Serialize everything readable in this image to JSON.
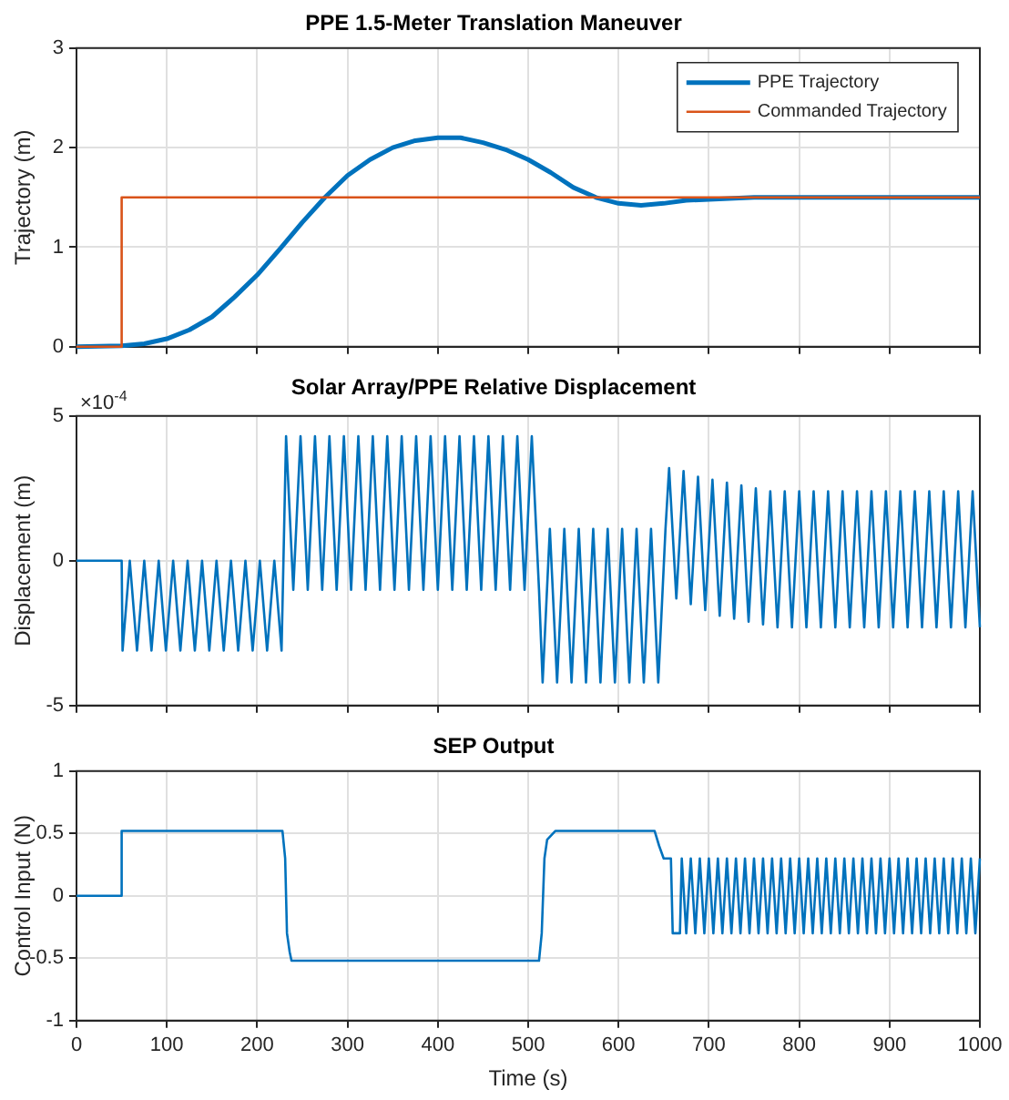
{
  "chart_data": [
    {
      "type": "line",
      "title": "PPE 1.5-Meter Translation Maneuver",
      "ylabel": "Trajectory (m)",
      "xlim": [
        0,
        1000
      ],
      "xticks": [
        0,
        100,
        200,
        300,
        400,
        500,
        600,
        700,
        800,
        900,
        1000
      ],
      "ylim": [
        0,
        3
      ],
      "yticks": [
        0,
        1,
        2,
        3
      ],
      "grid": true,
      "legend": "top right",
      "tick_labels": "y",
      "marker": "none",
      "line_style": "solid",
      "series": [
        {
          "name": "PPE Trajectory",
          "color": "#0072bd",
          "x": [
            0,
            50,
            75,
            100,
            125,
            150,
            175,
            200,
            225,
            250,
            275,
            300,
            325,
            350,
            375,
            400,
            425,
            450,
            475,
            500,
            525,
            550,
            575,
            600,
            625,
            650,
            675,
            700,
            750,
            800,
            900,
            1000
          ],
          "values": [
            0,
            0.01,
            0.03,
            0.08,
            0.17,
            0.3,
            0.5,
            0.72,
            0.98,
            1.25,
            1.5,
            1.72,
            1.88,
            2.0,
            2.07,
            2.1,
            2.1,
            2.05,
            1.98,
            1.88,
            1.75,
            1.6,
            1.5,
            1.44,
            1.42,
            1.44,
            1.47,
            1.48,
            1.5,
            1.5,
            1.5,
            1.5
          ]
        },
        {
          "name": "Commanded Trajectory",
          "color": "#d95319",
          "x": [
            0,
            50,
            50,
            1000
          ],
          "values": [
            0,
            0,
            1.5,
            1.5
          ]
        }
      ]
    },
    {
      "type": "line",
      "title": "Solar Array/PPE Relative Displacement",
      "ylabel": "Displacement (m)",
      "annotations": [
        "×10$^{-4}$"
      ],
      "xlim": [
        0,
        1000
      ],
      "xticks": [
        0,
        100,
        200,
        300,
        400,
        500,
        600,
        700,
        800,
        900,
        1000
      ],
      "ylim": [
        -5,
        5
      ],
      "yticks": [
        -5,
        0,
        5
      ],
      "grid": true,
      "tick_labels": "y",
      "marker": "none",
      "line_style": "solid",
      "series": [
        {
          "color": "#0072bd",
          "x": [
            0,
            50,
            51,
            59,
            67,
            75,
            83,
            91,
            99,
            107,
            115,
            123,
            131,
            139,
            147,
            155,
            163,
            171,
            179,
            187,
            195,
            203,
            211,
            219,
            227,
            232,
            240,
            248,
            256,
            264,
            272,
            280,
            288,
            296,
            304,
            312,
            320,
            328,
            336,
            344,
            352,
            360,
            368,
            376,
            384,
            392,
            400,
            408,
            416,
            424,
            432,
            440,
            448,
            456,
            464,
            472,
            480,
            488,
            496,
            504,
            512,
            516,
            524,
            532,
            540,
            548,
            556,
            564,
            572,
            580,
            588,
            596,
            604,
            612,
            620,
            628,
            636,
            644,
            652,
            656,
            664,
            672,
            680,
            688,
            696,
            704,
            712,
            720,
            728,
            736,
            744,
            752,
            760,
            768,
            776,
            784,
            792,
            800,
            808,
            816,
            824,
            832,
            840,
            848,
            856,
            864,
            872,
            880,
            888,
            896,
            904,
            912,
            920,
            928,
            936,
            944,
            952,
            960,
            968,
            976,
            984,
            992,
            1000
          ],
          "values": [
            0,
            0,
            -3.1,
            0,
            -3.1,
            0,
            -3.1,
            0,
            -3.1,
            0,
            -3.1,
            0,
            -3.1,
            0,
            -3.1,
            0,
            -3.1,
            0,
            -3.1,
            0,
            -3.1,
            0,
            -3.1,
            0,
            -3.1,
            4.3,
            -1,
            4.3,
            -1,
            4.3,
            -1,
            4.3,
            -1,
            4.3,
            -1,
            4.3,
            -1,
            4.3,
            -1,
            4.3,
            -1,
            4.3,
            -1,
            4.3,
            -1,
            4.3,
            -1,
            4.3,
            -1,
            4.3,
            -1,
            4.3,
            -1,
            4.3,
            -1,
            4.3,
            -1,
            4.3,
            -1,
            4.3,
            -1,
            -4.2,
            1.1,
            -4.2,
            1.1,
            -4.2,
            1.1,
            -4.2,
            1.1,
            -4.2,
            1.1,
            -4.2,
            1.1,
            -4.2,
            1.1,
            -4.2,
            1.1,
            -4.2,
            1.1,
            3.2,
            -1.3,
            3.1,
            -1.5,
            2.9,
            -1.7,
            2.8,
            -1.9,
            2.7,
            -2.0,
            2.6,
            -2.1,
            2.5,
            -2.2,
            2.4,
            -2.3,
            2.4,
            -2.3,
            2.4,
            -2.3,
            2.4,
            -2.3,
            2.4,
            -2.3,
            2.4,
            -2.3,
            2.4,
            -2.3,
            2.4,
            -2.3,
            2.4,
            -2.3,
            2.4,
            -2.3,
            2.4,
            -2.3,
            2.4,
            -2.3,
            2.4,
            -2.3,
            2.4,
            -2.3,
            2.4,
            -2.3
          ]
        }
      ]
    },
    {
      "type": "line",
      "title": "SEP Output",
      "xlabel": "Time (s)",
      "ylabel": "Control Input (N)",
      "xlim": [
        0,
        1000
      ],
      "xticks": [
        0,
        100,
        200,
        300,
        400,
        500,
        600,
        700,
        800,
        900,
        1000
      ],
      "ylim": [
        -1,
        1
      ],
      "yticks": [
        -1,
        -0.5,
        0,
        0.5,
        1
      ],
      "grid": true,
      "marker": "none",
      "line_style": "solid",
      "series": [
        {
          "color": "#0072bd",
          "x": [
            0,
            50,
            50,
            228,
            231,
            233,
            236,
            238,
            512,
            515,
            518,
            521,
            530,
            640,
            645,
            650,
            658,
            660,
            668,
            670,
            675,
            680,
            685,
            690,
            695,
            700,
            705,
            710,
            715,
            720,
            725,
            730,
            735,
            740,
            745,
            750,
            755,
            760,
            765,
            770,
            775,
            780,
            785,
            790,
            795,
            800,
            805,
            810,
            815,
            820,
            825,
            830,
            835,
            840,
            845,
            850,
            855,
            860,
            865,
            870,
            875,
            880,
            885,
            890,
            895,
            900,
            905,
            910,
            915,
            920,
            925,
            930,
            935,
            940,
            945,
            950,
            955,
            960,
            965,
            970,
            975,
            980,
            985,
            990,
            995,
            1000
          ],
          "values": [
            0,
            0,
            0.52,
            0.52,
            0.3,
            -0.3,
            -0.45,
            -0.52,
            -0.52,
            -0.3,
            0.3,
            0.45,
            0.52,
            0.52,
            0.4,
            0.3,
            0.3,
            -0.3,
            -0.3,
            0.3,
            -0.3,
            0.3,
            -0.3,
            0.3,
            -0.3,
            0.3,
            -0.3,
            0.3,
            -0.3,
            0.3,
            -0.3,
            0.3,
            -0.3,
            0.3,
            -0.3,
            0.3,
            -0.3,
            0.3,
            -0.3,
            0.3,
            -0.3,
            0.3,
            -0.3,
            0.3,
            -0.3,
            0.3,
            -0.3,
            0.3,
            -0.3,
            0.3,
            -0.3,
            0.3,
            -0.3,
            0.3,
            -0.3,
            0.3,
            -0.3,
            0.3,
            -0.3,
            0.3,
            -0.3,
            0.3,
            -0.3,
            0.3,
            -0.3,
            0.3,
            -0.3,
            0.3,
            -0.3,
            0.3,
            -0.3,
            0.3,
            -0.3,
            0.3,
            -0.3,
            0.3,
            -0.3,
            0.3,
            -0.3,
            0.3,
            -0.3,
            0.3,
            -0.3,
            0.3,
            -0.3,
            0.3
          ]
        }
      ]
    }
  ]
}
